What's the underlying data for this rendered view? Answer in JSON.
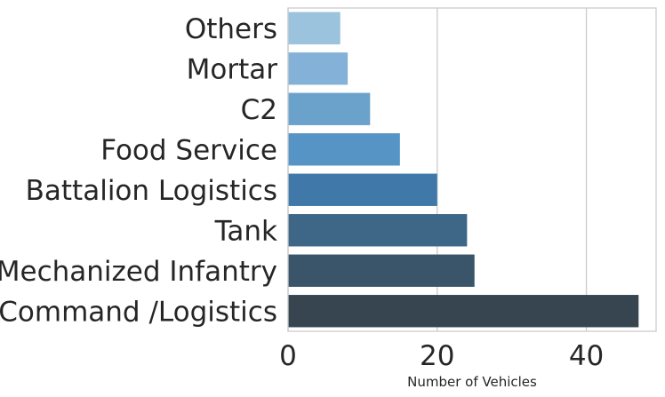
{
  "chart_data": {
    "type": "bar",
    "orientation": "horizontal",
    "categories": [
      "Others",
      "Mortar",
      "C2",
      "Food Service",
      "Battalion Logistics",
      "Tank",
      "Mechanized Infantry",
      "Command /Logistics"
    ],
    "values": [
      7,
      8,
      11,
      15,
      20,
      24,
      25,
      47
    ],
    "colors": [
      "#9BC3DE",
      "#84B1D7",
      "#6BA2CB",
      "#5594C5",
      "#4079A9",
      "#3E6687",
      "#3A5569",
      "#36454F"
    ],
    "xlabel": "Number of Vehicles",
    "ylabel": "",
    "xlim": [
      0,
      49.35
    ],
    "xticks": [
      0,
      20,
      40
    ],
    "grid": "x",
    "legend": "none"
  }
}
